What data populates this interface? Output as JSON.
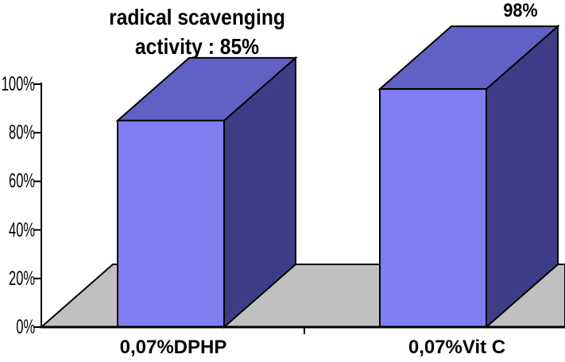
{
  "chart_data": {
    "type": "bar",
    "projection": "3d",
    "title": "radical scavenging activity : 85%",
    "title_lines": [
      "radical scavenging",
      "activity : 85%"
    ],
    "categories": [
      "0,07%DPHP",
      "0,07%Vit C"
    ],
    "values": [
      85,
      98
    ],
    "value_labels": [
      "",
      "98%"
    ],
    "y_ticks": [
      "0%",
      "20%",
      "40%",
      "60%",
      "80%",
      "100%"
    ],
    "ylim": [
      0,
      100
    ],
    "grid": "off",
    "legend": "none",
    "colors": {
      "bar_front": "#7E7EF2",
      "bar_top": "#6061C4",
      "bar_side": "#3D3D87",
      "floor": "#C0C0C0",
      "outline": "#000000",
      "text": "#000000",
      "background": "#FFFFFF"
    }
  }
}
